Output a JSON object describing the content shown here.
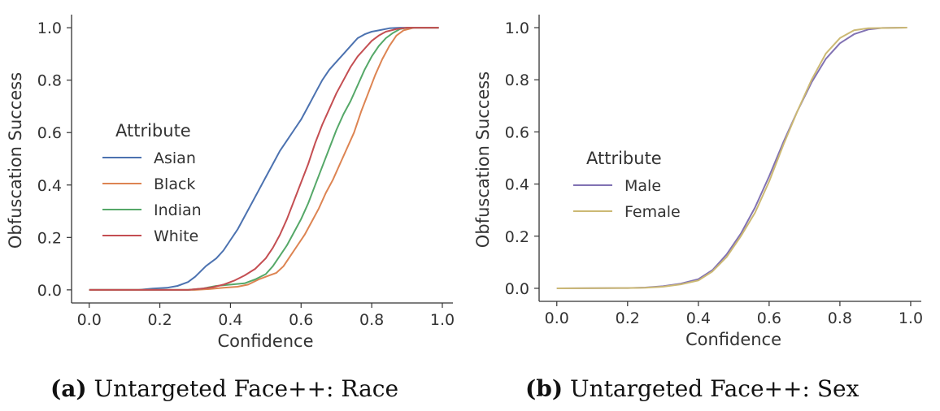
{
  "chart_data": [
    {
      "type": "line",
      "xlabel": "Confidence",
      "ylabel": "Obfuscation Success",
      "xlim": [
        -0.05,
        1.03
      ],
      "ylim": [
        -0.05,
        1.05
      ],
      "xticks": [
        "0.0",
        "0.2",
        "0.4",
        "0.6",
        "0.8",
        "1.0"
      ],
      "yticks": [
        "0.0",
        "0.2",
        "0.4",
        "0.6",
        "0.8",
        "1.0"
      ],
      "xtick_values": [
        0,
        0.2,
        0.4,
        0.6,
        0.8,
        1.0
      ],
      "ytick_values": [
        0,
        0.2,
        0.4,
        0.6,
        0.8,
        1.0
      ],
      "grid": false,
      "legend_title": "Attribute",
      "legend_placement": "center-left",
      "series": [
        {
          "name": "Asian",
          "color": "#4c72b0",
          "points": [
            [
              0,
              0
            ],
            [
              0.14,
              0
            ],
            [
              0.18,
              0.005
            ],
            [
              0.22,
              0.008
            ],
            [
              0.25,
              0.015
            ],
            [
              0.28,
              0.03
            ],
            [
              0.3,
              0.05
            ],
            [
              0.33,
              0.09
            ],
            [
              0.36,
              0.12
            ],
            [
              0.38,
              0.15
            ],
            [
              0.4,
              0.19
            ],
            [
              0.42,
              0.23
            ],
            [
              0.44,
              0.28
            ],
            [
              0.46,
              0.33
            ],
            [
              0.48,
              0.38
            ],
            [
              0.5,
              0.43
            ],
            [
              0.52,
              0.48
            ],
            [
              0.54,
              0.53
            ],
            [
              0.56,
              0.57
            ],
            [
              0.58,
              0.61
            ],
            [
              0.6,
              0.65
            ],
            [
              0.62,
              0.7
            ],
            [
              0.64,
              0.75
            ],
            [
              0.66,
              0.8
            ],
            [
              0.68,
              0.84
            ],
            [
              0.7,
              0.87
            ],
            [
              0.72,
              0.9
            ],
            [
              0.74,
              0.93
            ],
            [
              0.76,
              0.96
            ],
            [
              0.78,
              0.975
            ],
            [
              0.8,
              0.985
            ],
            [
              0.82,
              0.99
            ],
            [
              0.85,
              0.998
            ],
            [
              0.88,
              1.0
            ],
            [
              0.99,
              1.0
            ]
          ]
        },
        {
          "name": "Black",
          "color": "#dd8452",
          "points": [
            [
              0,
              0
            ],
            [
              0.3,
              0
            ],
            [
              0.34,
              0.003
            ],
            [
              0.38,
              0.008
            ],
            [
              0.42,
              0.012
            ],
            [
              0.45,
              0.02
            ],
            [
              0.48,
              0.04
            ],
            [
              0.51,
              0.055
            ],
            [
              0.53,
              0.065
            ],
            [
              0.55,
              0.09
            ],
            [
              0.57,
              0.13
            ],
            [
              0.59,
              0.17
            ],
            [
              0.61,
              0.21
            ],
            [
              0.63,
              0.26
            ],
            [
              0.65,
              0.31
            ],
            [
              0.67,
              0.37
            ],
            [
              0.69,
              0.42
            ],
            [
              0.71,
              0.48
            ],
            [
              0.73,
              0.54
            ],
            [
              0.75,
              0.6
            ],
            [
              0.77,
              0.68
            ],
            [
              0.79,
              0.75
            ],
            [
              0.81,
              0.82
            ],
            [
              0.83,
              0.88
            ],
            [
              0.85,
              0.93
            ],
            [
              0.87,
              0.97
            ],
            [
              0.89,
              0.99
            ],
            [
              0.92,
              1.0
            ],
            [
              0.99,
              1.0
            ]
          ]
        },
        {
          "name": "Indian",
          "color": "#55a868",
          "points": [
            [
              0,
              0
            ],
            [
              0.28,
              0
            ],
            [
              0.32,
              0.005
            ],
            [
              0.36,
              0.015
            ],
            [
              0.4,
              0.02
            ],
            [
              0.44,
              0.025
            ],
            [
              0.47,
              0.04
            ],
            [
              0.5,
              0.06
            ],
            [
              0.52,
              0.09
            ],
            [
              0.54,
              0.13
            ],
            [
              0.56,
              0.17
            ],
            [
              0.58,
              0.22
            ],
            [
              0.6,
              0.27
            ],
            [
              0.62,
              0.33
            ],
            [
              0.64,
              0.4
            ],
            [
              0.66,
              0.47
            ],
            [
              0.68,
              0.54
            ],
            [
              0.7,
              0.61
            ],
            [
              0.72,
              0.67
            ],
            [
              0.74,
              0.72
            ],
            [
              0.76,
              0.78
            ],
            [
              0.78,
              0.84
            ],
            [
              0.8,
              0.89
            ],
            [
              0.82,
              0.93
            ],
            [
              0.84,
              0.96
            ],
            [
              0.86,
              0.98
            ],
            [
              0.88,
              0.995
            ],
            [
              0.9,
              1.0
            ],
            [
              0.99,
              1.0
            ]
          ]
        },
        {
          "name": "White",
          "color": "#c44e52",
          "points": [
            [
              0,
              0
            ],
            [
              0.28,
              0
            ],
            [
              0.32,
              0.005
            ],
            [
              0.35,
              0.01
            ],
            [
              0.38,
              0.02
            ],
            [
              0.41,
              0.035
            ],
            [
              0.44,
              0.055
            ],
            [
              0.47,
              0.08
            ],
            [
              0.5,
              0.12
            ],
            [
              0.52,
              0.16
            ],
            [
              0.54,
              0.21
            ],
            [
              0.56,
              0.27
            ],
            [
              0.58,
              0.34
            ],
            [
              0.6,
              0.41
            ],
            [
              0.62,
              0.48
            ],
            [
              0.64,
              0.56
            ],
            [
              0.66,
              0.63
            ],
            [
              0.68,
              0.69
            ],
            [
              0.7,
              0.75
            ],
            [
              0.72,
              0.8
            ],
            [
              0.74,
              0.85
            ],
            [
              0.76,
              0.89
            ],
            [
              0.78,
              0.92
            ],
            [
              0.8,
              0.95
            ],
            [
              0.82,
              0.97
            ],
            [
              0.84,
              0.985
            ],
            [
              0.87,
              0.995
            ],
            [
              0.9,
              1.0
            ],
            [
              0.99,
              1.0
            ]
          ]
        }
      ]
    },
    {
      "type": "line",
      "xlabel": "Confidence",
      "ylabel": "Obfuscation Success",
      "xlim": [
        -0.05,
        1.03
      ],
      "ylim": [
        -0.05,
        1.05
      ],
      "xticks": [
        "0.0",
        "0.2",
        "0.4",
        "0.6",
        "0.8",
        "1.0"
      ],
      "yticks": [
        "0.0",
        "0.2",
        "0.4",
        "0.6",
        "0.8",
        "1.0"
      ],
      "xtick_values": [
        0,
        0.2,
        0.4,
        0.6,
        0.8,
        1.0
      ],
      "ytick_values": [
        0,
        0.2,
        0.4,
        0.6,
        0.8,
        1.0
      ],
      "grid": false,
      "legend_title": "Attribute",
      "legend_placement": "center-left",
      "series": [
        {
          "name": "Male",
          "color": "#8172b3",
          "points": [
            [
              0,
              0
            ],
            [
              0.2,
              0.001
            ],
            [
              0.25,
              0.003
            ],
            [
              0.3,
              0.008
            ],
            [
              0.35,
              0.018
            ],
            [
              0.4,
              0.035
            ],
            [
              0.44,
              0.07
            ],
            [
              0.48,
              0.13
            ],
            [
              0.52,
              0.21
            ],
            [
              0.56,
              0.31
            ],
            [
              0.6,
              0.43
            ],
            [
              0.64,
              0.56
            ],
            [
              0.68,
              0.68
            ],
            [
              0.72,
              0.79
            ],
            [
              0.76,
              0.88
            ],
            [
              0.8,
              0.94
            ],
            [
              0.84,
              0.975
            ],
            [
              0.88,
              0.993
            ],
            [
              0.92,
              0.999
            ],
            [
              0.99,
              1.0
            ]
          ]
        },
        {
          "name": "Female",
          "color": "#ccb974",
          "points": [
            [
              0,
              0
            ],
            [
              0.2,
              0.001
            ],
            [
              0.25,
              0.002
            ],
            [
              0.3,
              0.006
            ],
            [
              0.35,
              0.015
            ],
            [
              0.4,
              0.03
            ],
            [
              0.44,
              0.065
            ],
            [
              0.48,
              0.12
            ],
            [
              0.52,
              0.2
            ],
            [
              0.56,
              0.29
            ],
            [
              0.6,
              0.41
            ],
            [
              0.64,
              0.55
            ],
            [
              0.68,
              0.68
            ],
            [
              0.72,
              0.8
            ],
            [
              0.76,
              0.9
            ],
            [
              0.8,
              0.96
            ],
            [
              0.84,
              0.99
            ],
            [
              0.88,
              0.998
            ],
            [
              0.99,
              1.0
            ]
          ]
        }
      ]
    }
  ],
  "captions": [
    {
      "tag": "(a)",
      "text": "Untargeted Face++: Race"
    },
    {
      "tag": "(b)",
      "text": "Untargeted Face++: Sex"
    }
  ]
}
